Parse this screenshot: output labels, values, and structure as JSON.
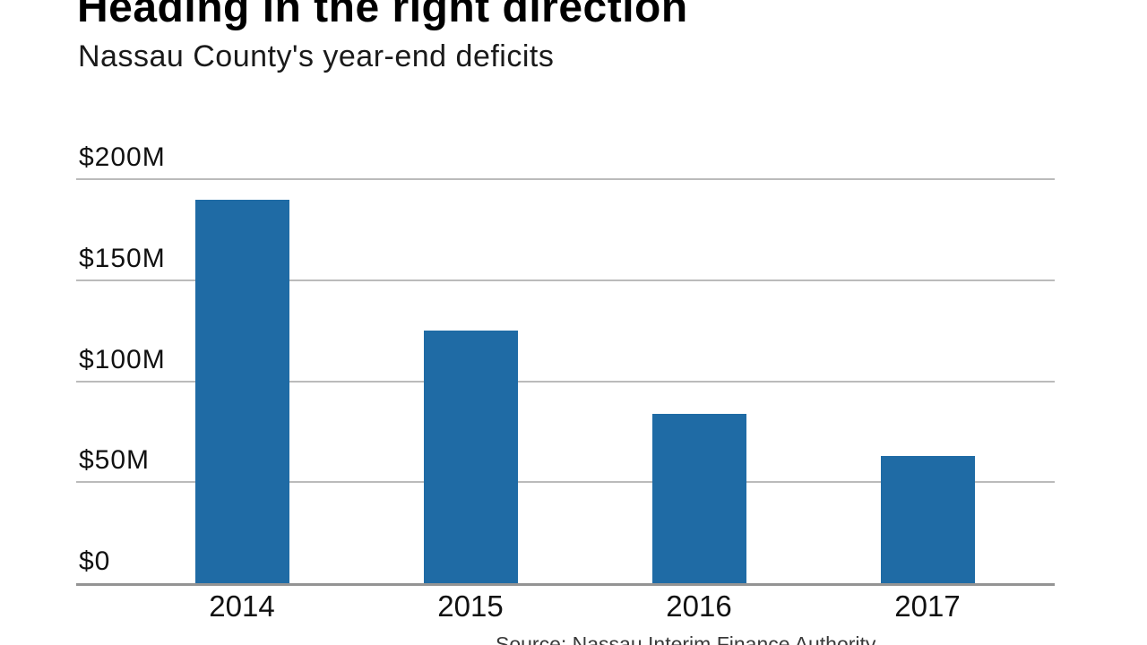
{
  "header": {
    "title": "Heading in the right direction",
    "subtitle": "Nassau County's year-end deficits"
  },
  "source": {
    "text": "Source: Nassau Interim Finance Authority"
  },
  "colors": {
    "bar": "#1F6BA5",
    "gridline": "#BBBBBB",
    "axis_line": "#949494",
    "title_text": "#000000",
    "label_text": "#111111",
    "source_text": "#3A3A3A"
  },
  "chart_data": {
    "type": "bar",
    "title": "Heading in the right direction",
    "subtitle": "Nassau County's year-end deficits",
    "categories": [
      "2014",
      "2015",
      "2016",
      "2017"
    ],
    "values": [
      190,
      125,
      84,
      63
    ],
    "xlabel": "",
    "ylabel": "",
    "ylim": [
      0,
      200
    ],
    "yticks": [
      {
        "value": 0,
        "label": "$0"
      },
      {
        "value": 50,
        "label": "$50M"
      },
      {
        "value": 100,
        "label": "$100M"
      },
      {
        "value": 150,
        "label": "$150M"
      },
      {
        "value": 200,
        "label": "$200M"
      }
    ],
    "grid": true,
    "legend": false,
    "source": "Source: Nassau Interim Finance Authority"
  }
}
